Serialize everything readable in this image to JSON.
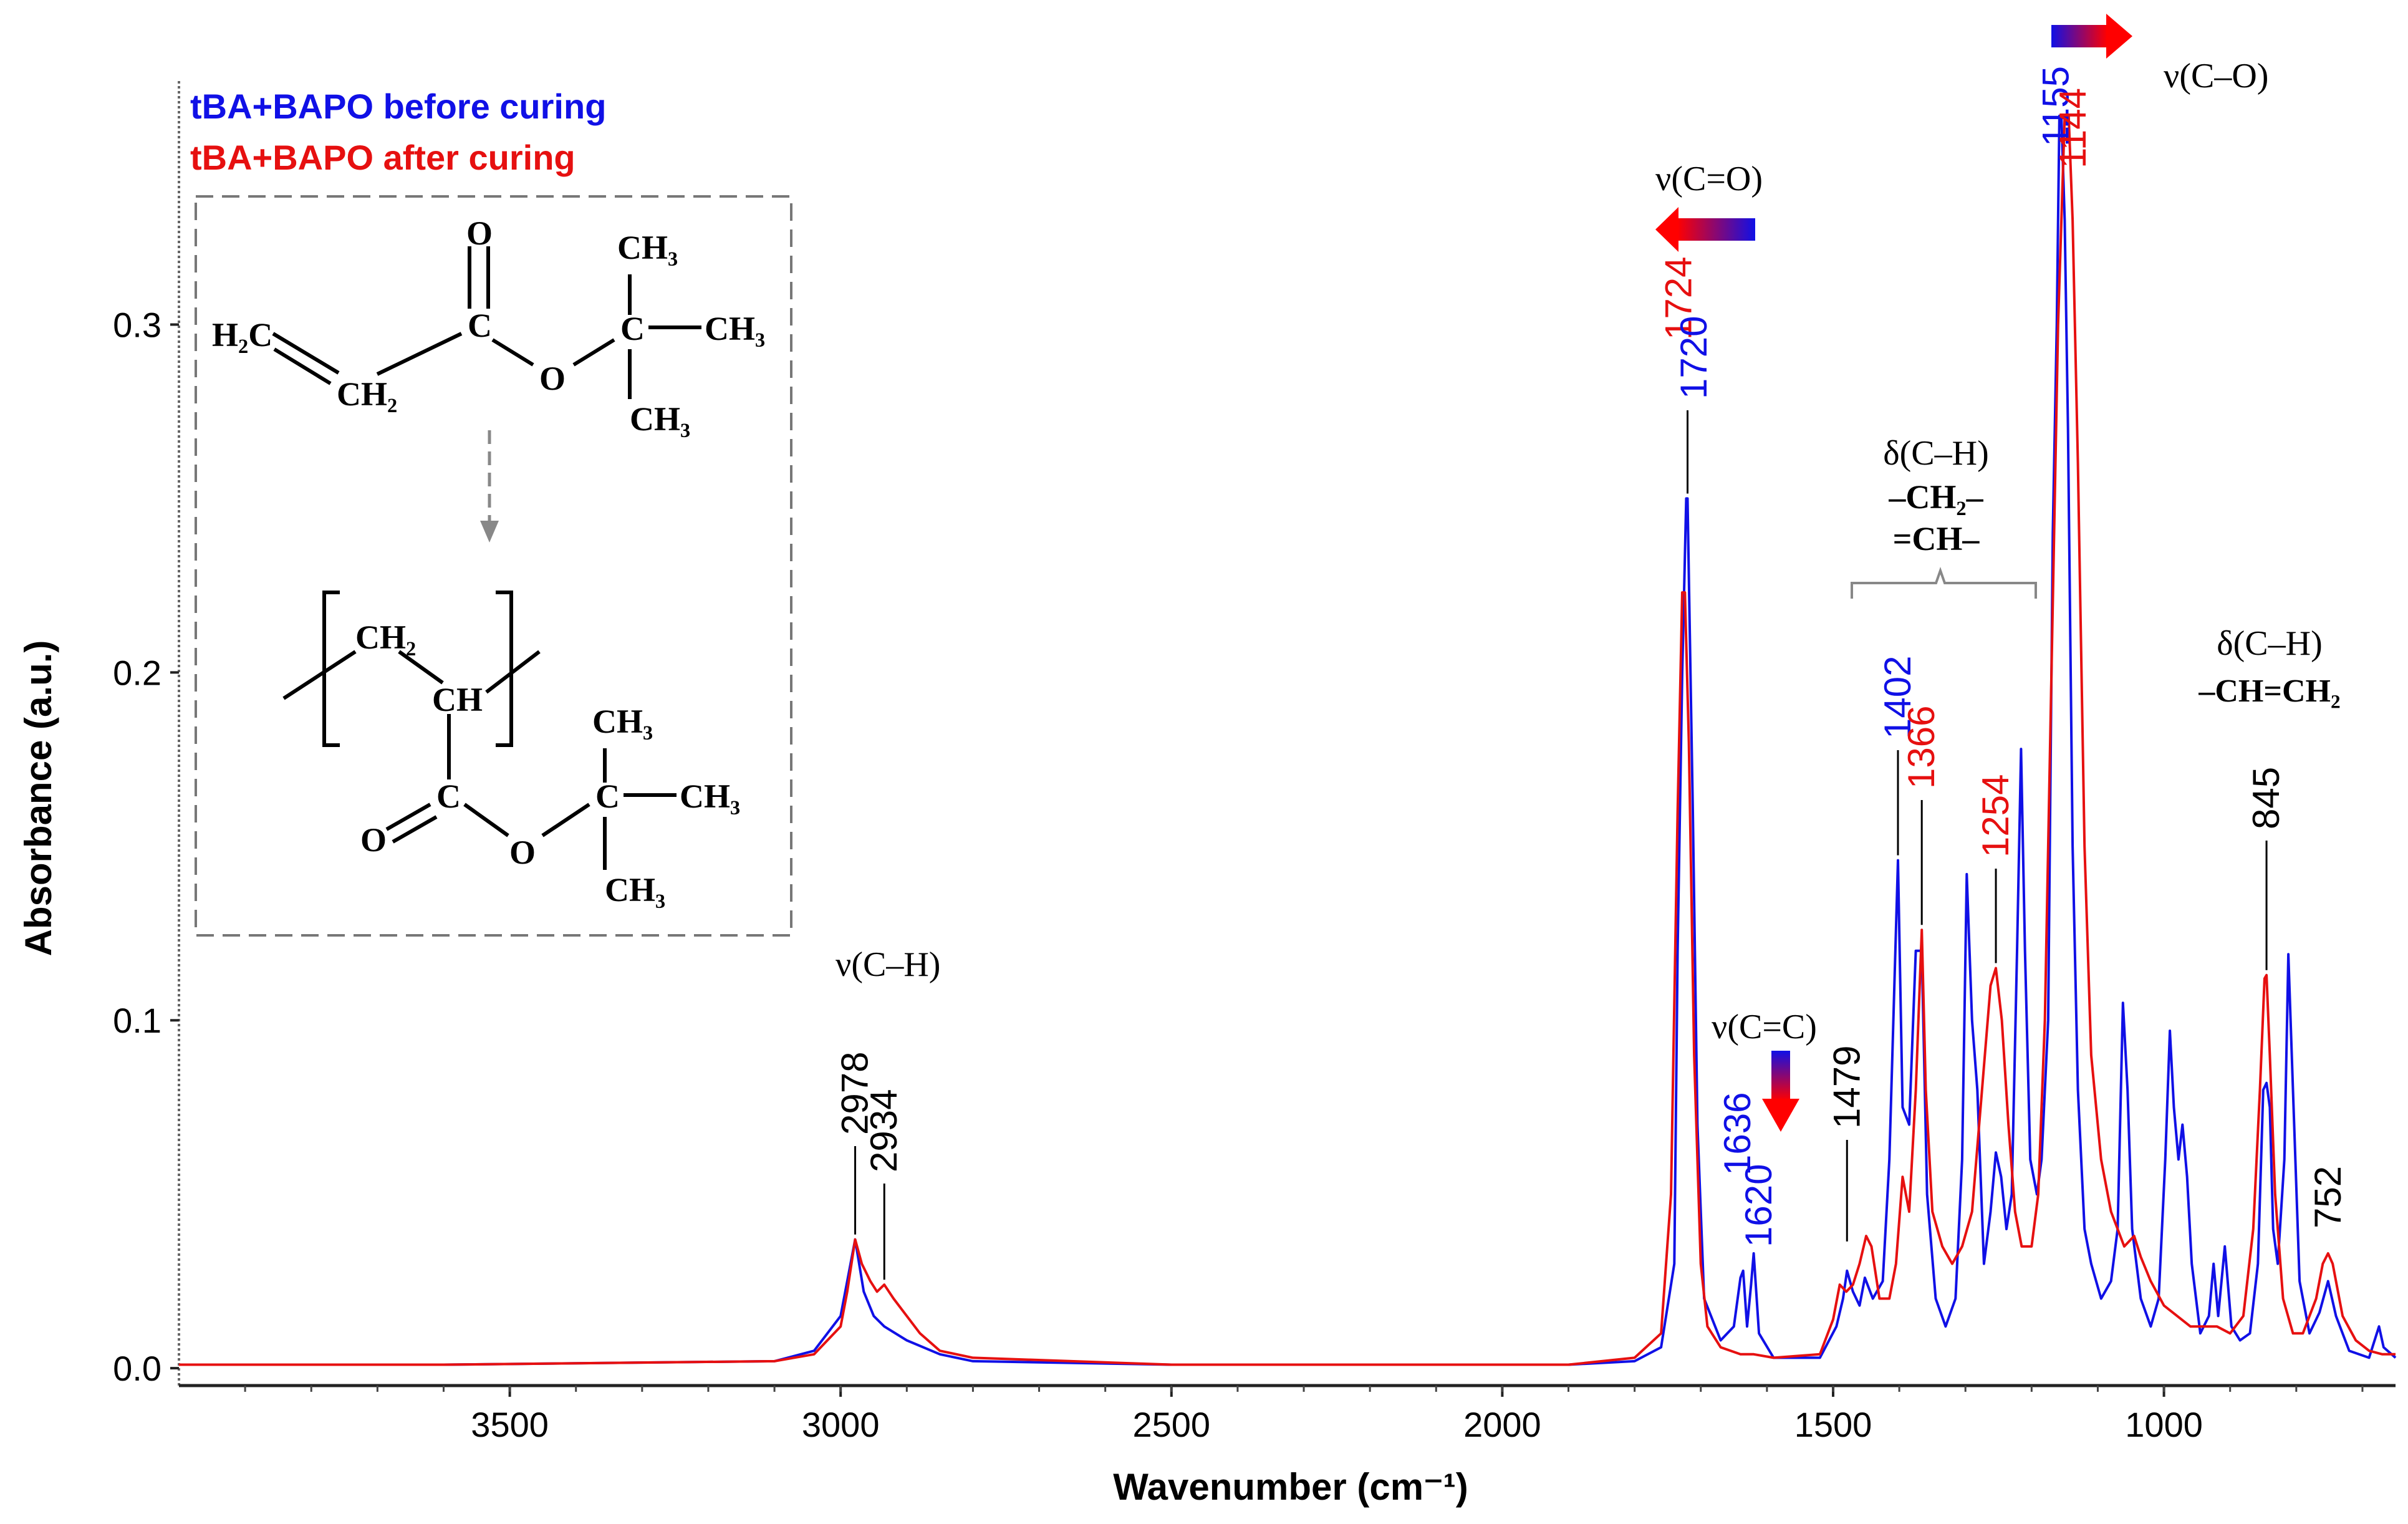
{
  "legend": [
    {
      "label": "tBA+BAPO before curing",
      "color": "#1010e6"
    },
    {
      "label": "tBA+BAPO after curing",
      "color": "#e61010"
    }
  ],
  "chart_data": {
    "type": "line",
    "title": "",
    "xlabel": "Wavenumber (cm⁻¹)",
    "ylabel": "Absorbance (a.u.)",
    "xlim": [
      4000,
      650
    ],
    "ylim": [
      -0.005,
      0.37
    ],
    "x_reversed": true,
    "x_ticks": [
      3500,
      3000,
      2500,
      2000,
      1500,
      1000
    ],
    "y_ticks": [
      0.0,
      0.1,
      0.2,
      0.3
    ],
    "y_tick_labels": [
      "0.0",
      "0.1",
      "0.2",
      "0.3"
    ],
    "series": [
      {
        "name": "tBA+BAPO before curing",
        "color": "#1010e6",
        "points": [
          [
            4000,
            0.001
          ],
          [
            3600,
            0.001
          ],
          [
            3100,
            0.002
          ],
          [
            3040,
            0.005
          ],
          [
            3000,
            0.015
          ],
          [
            2990,
            0.025
          ],
          [
            2978,
            0.037
          ],
          [
            2965,
            0.022
          ],
          [
            2950,
            0.015
          ],
          [
            2934,
            0.012
          ],
          [
            2900,
            0.008
          ],
          [
            2850,
            0.004
          ],
          [
            2800,
            0.002
          ],
          [
            2500,
            0.001
          ],
          [
            1900,
            0.001
          ],
          [
            1800,
            0.002
          ],
          [
            1760,
            0.006
          ],
          [
            1740,
            0.03
          ],
          [
            1735,
            0.12
          ],
          [
            1728,
            0.2
          ],
          [
            1722,
            0.25
          ],
          [
            1720,
            0.25
          ],
          [
            1712,
            0.16
          ],
          [
            1705,
            0.07
          ],
          [
            1695,
            0.02
          ],
          [
            1670,
            0.008
          ],
          [
            1650,
            0.012
          ],
          [
            1640,
            0.026
          ],
          [
            1636,
            0.028
          ],
          [
            1630,
            0.012
          ],
          [
            1624,
            0.024
          ],
          [
            1620,
            0.033
          ],
          [
            1612,
            0.01
          ],
          [
            1590,
            0.003
          ],
          [
            1520,
            0.003
          ],
          [
            1495,
            0.012
          ],
          [
            1485,
            0.02
          ],
          [
            1479,
            0.028
          ],
          [
            1470,
            0.022
          ],
          [
            1460,
            0.018
          ],
          [
            1452,
            0.026
          ],
          [
            1440,
            0.02
          ],
          [
            1425,
            0.025
          ],
          [
            1415,
            0.06
          ],
          [
            1402,
            0.146
          ],
          [
            1395,
            0.075
          ],
          [
            1385,
            0.07
          ],
          [
            1375,
            0.12
          ],
          [
            1366,
            0.12
          ],
          [
            1358,
            0.05
          ],
          [
            1345,
            0.02
          ],
          [
            1330,
            0.012
          ],
          [
            1315,
            0.02
          ],
          [
            1305,
            0.06
          ],
          [
            1298,
            0.142
          ],
          [
            1290,
            0.1
          ],
          [
            1282,
            0.08
          ],
          [
            1272,
            0.03
          ],
          [
            1262,
            0.045
          ],
          [
            1254,
            0.062
          ],
          [
            1246,
            0.055
          ],
          [
            1238,
            0.04
          ],
          [
            1230,
            0.05
          ],
          [
            1222,
            0.12
          ],
          [
            1216,
            0.178
          ],
          [
            1210,
            0.12
          ],
          [
            1202,
            0.06
          ],
          [
            1192,
            0.05
          ],
          [
            1185,
            0.06
          ],
          [
            1175,
            0.1
          ],
          [
            1168,
            0.24
          ],
          [
            1162,
            0.3
          ],
          [
            1158,
            0.36
          ],
          [
            1155,
            0.36
          ],
          [
            1150,
            0.33
          ],
          [
            1145,
            0.27
          ],
          [
            1138,
            0.15
          ],
          [
            1130,
            0.08
          ],
          [
            1120,
            0.04
          ],
          [
            1110,
            0.03
          ],
          [
            1095,
            0.02
          ],
          [
            1080,
            0.025
          ],
          [
            1070,
            0.04
          ],
          [
            1062,
            0.105
          ],
          [
            1055,
            0.08
          ],
          [
            1048,
            0.04
          ],
          [
            1035,
            0.02
          ],
          [
            1020,
            0.012
          ],
          [
            1008,
            0.02
          ],
          [
            998,
            0.06
          ],
          [
            991,
            0.097
          ],
          [
            985,
            0.075
          ],
          [
            978,
            0.06
          ],
          [
            972,
            0.07
          ],
          [
            965,
            0.055
          ],
          [
            958,
            0.03
          ],
          [
            945,
            0.01
          ],
          [
            932,
            0.015
          ],
          [
            925,
            0.03
          ],
          [
            918,
            0.015
          ],
          [
            908,
            0.035
          ],
          [
            898,
            0.012
          ],
          [
            885,
            0.008
          ],
          [
            870,
            0.01
          ],
          [
            858,
            0.03
          ],
          [
            850,
            0.08
          ],
          [
            845,
            0.082
          ],
          [
            840,
            0.075
          ],
          [
            835,
            0.04
          ],
          [
            828,
            0.03
          ],
          [
            818,
            0.06
          ],
          [
            812,
            0.119
          ],
          [
            805,
            0.08
          ],
          [
            795,
            0.025
          ],
          [
            780,
            0.01
          ],
          [
            765,
            0.016
          ],
          [
            752,
            0.025
          ],
          [
            740,
            0.015
          ],
          [
            720,
            0.005
          ],
          [
            690,
            0.003
          ],
          [
            675,
            0.012
          ],
          [
            668,
            0.006
          ],
          [
            650,
            0.003
          ]
        ]
      },
      {
        "name": "tBA+BAPO after curing",
        "color": "#e61010",
        "points": [
          [
            4000,
            0.001
          ],
          [
            3600,
            0.001
          ],
          [
            3100,
            0.002
          ],
          [
            3040,
            0.004
          ],
          [
            3000,
            0.012
          ],
          [
            2990,
            0.022
          ],
          [
            2978,
            0.037
          ],
          [
            2968,
            0.03
          ],
          [
            2955,
            0.025
          ],
          [
            2945,
            0.022
          ],
          [
            2934,
            0.024
          ],
          [
            2920,
            0.02
          ],
          [
            2900,
            0.015
          ],
          [
            2880,
            0.01
          ],
          [
            2850,
            0.005
          ],
          [
            2800,
            0.003
          ],
          [
            2500,
            0.001
          ],
          [
            1900,
            0.001
          ],
          [
            1800,
            0.003
          ],
          [
            1760,
            0.01
          ],
          [
            1745,
            0.05
          ],
          [
            1735,
            0.16
          ],
          [
            1728,
            0.223
          ],
          [
            1724,
            0.223
          ],
          [
            1718,
            0.18
          ],
          [
            1710,
            0.09
          ],
          [
            1700,
            0.03
          ],
          [
            1690,
            0.012
          ],
          [
            1670,
            0.006
          ],
          [
            1640,
            0.004
          ],
          [
            1620,
            0.004
          ],
          [
            1590,
            0.003
          ],
          [
            1520,
            0.004
          ],
          [
            1500,
            0.014
          ],
          [
            1490,
            0.024
          ],
          [
            1480,
            0.022
          ],
          [
            1470,
            0.024
          ],
          [
            1460,
            0.03
          ],
          [
            1450,
            0.038
          ],
          [
            1442,
            0.035
          ],
          [
            1430,
            0.02
          ],
          [
            1415,
            0.02
          ],
          [
            1405,
            0.03
          ],
          [
            1395,
            0.055
          ],
          [
            1385,
            0.045
          ],
          [
            1375,
            0.08
          ],
          [
            1366,
            0.126
          ],
          [
            1360,
            0.08
          ],
          [
            1350,
            0.045
          ],
          [
            1335,
            0.035
          ],
          [
            1320,
            0.03
          ],
          [
            1305,
            0.035
          ],
          [
            1290,
            0.045
          ],
          [
            1275,
            0.08
          ],
          [
            1262,
            0.11
          ],
          [
            1254,
            0.115
          ],
          [
            1245,
            0.1
          ],
          [
            1235,
            0.07
          ],
          [
            1225,
            0.045
          ],
          [
            1215,
            0.035
          ],
          [
            1200,
            0.035
          ],
          [
            1190,
            0.05
          ],
          [
            1180,
            0.1
          ],
          [
            1170,
            0.2
          ],
          [
            1160,
            0.3
          ],
          [
            1150,
            0.36
          ],
          [
            1144,
            0.36
          ],
          [
            1138,
            0.33
          ],
          [
            1130,
            0.26
          ],
          [
            1120,
            0.15
          ],
          [
            1110,
            0.09
          ],
          [
            1095,
            0.06
          ],
          [
            1080,
            0.045
          ],
          [
            1060,
            0.035
          ],
          [
            1045,
            0.038
          ],
          [
            1035,
            0.032
          ],
          [
            1020,
            0.025
          ],
          [
            1000,
            0.018
          ],
          [
            980,
            0.015
          ],
          [
            960,
            0.012
          ],
          [
            940,
            0.012
          ],
          [
            920,
            0.012
          ],
          [
            900,
            0.01
          ],
          [
            880,
            0.015
          ],
          [
            865,
            0.04
          ],
          [
            855,
            0.08
          ],
          [
            848,
            0.112
          ],
          [
            845,
            0.113
          ],
          [
            840,
            0.09
          ],
          [
            832,
            0.05
          ],
          [
            820,
            0.02
          ],
          [
            805,
            0.01
          ],
          [
            790,
            0.01
          ],
          [
            770,
            0.02
          ],
          [
            760,
            0.03
          ],
          [
            752,
            0.033
          ],
          [
            745,
            0.03
          ],
          [
            730,
            0.015
          ],
          [
            710,
            0.008
          ],
          [
            690,
            0.005
          ],
          [
            670,
            0.004
          ],
          [
            650,
            0.004
          ]
        ]
      }
    ],
    "peak_labels": [
      {
        "text": "2978",
        "x": 2978,
        "y": 0.037,
        "color": "#000000"
      },
      {
        "text": "2934",
        "x": 2934,
        "y": 0.024,
        "color": "#000000"
      },
      {
        "text": "1724",
        "x": 1724,
        "y": 0.25,
        "color": "#e61010"
      },
      {
        "text": "1720",
        "x": 1720,
        "y": 0.25,
        "color": "#1010e6"
      },
      {
        "text": "1636",
        "x": 1636,
        "y": 0.028,
        "color": "#1010e6"
      },
      {
        "text": "1620",
        "x": 1620,
        "y": 0.033,
        "color": "#1010e6"
      },
      {
        "text": "1479",
        "x": 1479,
        "y": 0.035,
        "color": "#000000"
      },
      {
        "text": "1402",
        "x": 1402,
        "y": 0.146,
        "color": "#1010e6"
      },
      {
        "text": "1366",
        "x": 1366,
        "y": 0.126,
        "color": "#e61010"
      },
      {
        "text": "1254",
        "x": 1254,
        "y": 0.115,
        "color": "#e61010"
      },
      {
        "text": "1155",
        "x": 1155,
        "y": 0.36,
        "color": "#1010e6"
      },
      {
        "text": "1144",
        "x": 1144,
        "y": 0.36,
        "color": "#e61010"
      },
      {
        "text": "845",
        "x": 845,
        "y": 0.113,
        "color": "#000000"
      },
      {
        "text": "752",
        "x": 752,
        "y": 0.033,
        "color": "#000000"
      }
    ],
    "annotations": [
      {
        "id": "ch",
        "text": "ν(C–H)"
      },
      {
        "id": "co_double",
        "text": "ν(C=O)"
      },
      {
        "id": "cc_double",
        "text": "ν(C=C)"
      },
      {
        "id": "co_single",
        "text": "ν(C–O)"
      },
      {
        "id": "dch_title",
        "text": "δ(C–H)"
      },
      {
        "id": "dch_line1",
        "text": "–CH₂–"
      },
      {
        "id": "dch_line2",
        "text": "=CH–"
      },
      {
        "id": "dvinyl_title",
        "text": "δ(C–H)"
      },
      {
        "id": "dvinyl_line1",
        "text": "–CH=CH₂"
      }
    ]
  },
  "inset": {
    "monomer": {
      "h2c": "H₂C",
      "ch2": "CH₂",
      "c": "C",
      "o_top": "O",
      "o_ester": "O",
      "c_quat": "C",
      "ch3_top": "CH₃",
      "ch3_right": "CH₃",
      "ch3_bottom": "CH₃"
    },
    "polymer": {
      "ch2": "CH₂",
      "ch": "CH",
      "c": "C",
      "o_left": "O",
      "o_ester": "O",
      "c_quat": "C",
      "ch3_top": "CH₃",
      "ch3_right": "CH₃",
      "ch3_bottom": "CH₃"
    }
  }
}
